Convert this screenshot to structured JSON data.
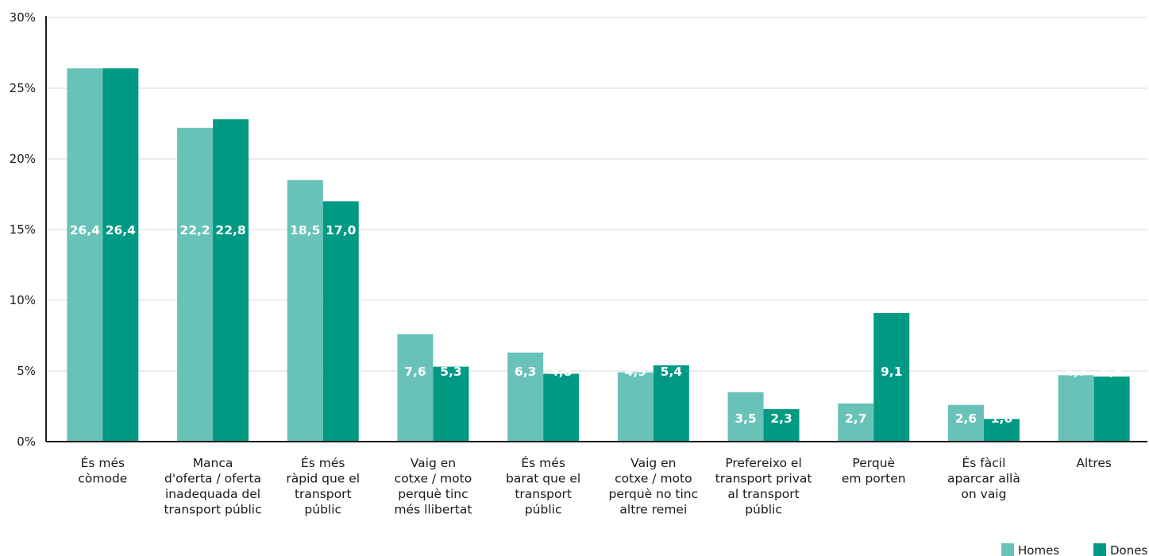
{
  "chart_data": {
    "type": "bar",
    "categories": [
      [
        "És més",
        "còmode"
      ],
      [
        "Manca",
        "d'oferta / oferta",
        "inadequada del",
        "transport públic"
      ],
      [
        "És més",
        "ràpid que el",
        "transport",
        "públic"
      ],
      [
        "Vaig en",
        "cotxe / moto",
        "perquè tinc",
        "més llibertat"
      ],
      [
        "És més",
        "barat que el",
        "transport",
        "públic"
      ],
      [
        "Vaig en",
        "cotxe / moto",
        "perquè no tinc",
        "altre remei"
      ],
      [
        "Prefereixo el",
        "transport privat",
        "al transport",
        "públic"
      ],
      [
        "Perquè",
        "em porten"
      ],
      [
        "És fàcil",
        "aparcar allà",
        "on vaig"
      ],
      [
        "Altres"
      ]
    ],
    "series": [
      {
        "name": "Homes",
        "color": "#69c2b8",
        "values": [
          26.4,
          22.2,
          18.5,
          7.6,
          6.3,
          4.9,
          3.5,
          2.7,
          2.6,
          4.7
        ],
        "labels": [
          "26,4",
          "22,2",
          "18,5",
          "7,6",
          "6,3",
          "4,9",
          "3,5",
          "2,7",
          "2,6",
          "4,7"
        ]
      },
      {
        "name": "Dones",
        "color": "#009a84",
        "values": [
          26.4,
          22.8,
          17.0,
          5.3,
          4.8,
          5.4,
          2.3,
          9.1,
          1.6,
          4.6
        ],
        "labels": [
          "26,4",
          "22,8",
          "17,0",
          "5,3",
          "4,8",
          "5,4",
          "2,3",
          "9,1",
          "1,6",
          "4,6"
        ]
      }
    ],
    "yticks": [
      0,
      5,
      10,
      15,
      20,
      25,
      30
    ],
    "ytick_labels": [
      "0%",
      "5%",
      "10%",
      "15%",
      "20%",
      "25%",
      "30%"
    ],
    "ylim": [
      0,
      30
    ],
    "grid": true,
    "legend": "bottom-right",
    "title": "",
    "xlabel": "",
    "ylabel": ""
  }
}
